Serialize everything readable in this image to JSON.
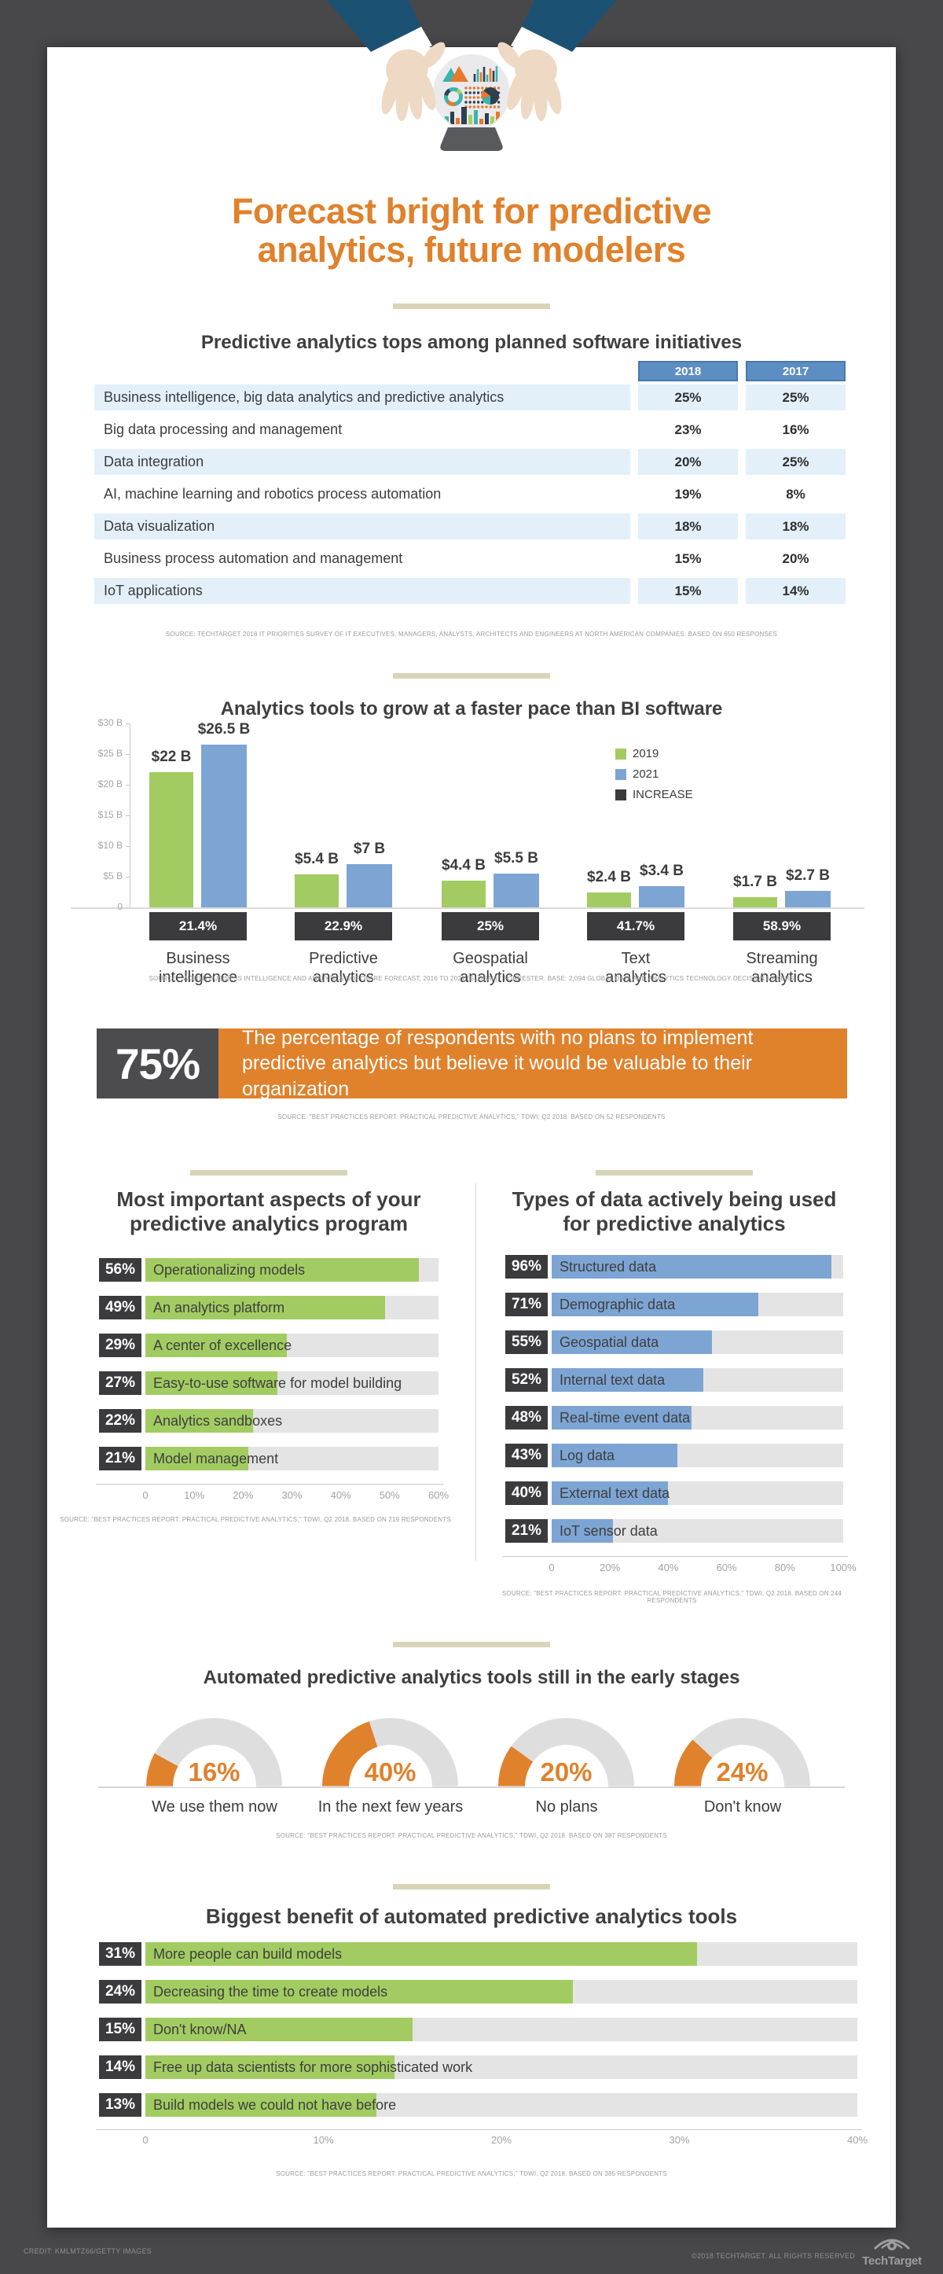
{
  "colors": {
    "orange": "#e0812c",
    "green": "#a2cc61",
    "blue": "#7da5d4",
    "header_blue": "#5d8ec3",
    "chip_dark": "#3b3b3d",
    "row_blue": "#e3f0fa",
    "divider_tan": "#d9d4b8",
    "navy_sleeve": "#1b5173",
    "skin": "#eed9c4",
    "bg_dark": "#48484a"
  },
  "header": {
    "title": "Forecast bright for predictive\nanalytics, future modelers"
  },
  "table_section": {
    "heading": "Predictive analytics tops among planned software initiatives",
    "col_2018": "2018",
    "col_2017": "2017",
    "rows": [
      {
        "label": "Business intelligence, big data analytics and predictive analytics",
        "y2018": "25%",
        "y2017": "25%"
      },
      {
        "label": "Big data processing and management",
        "y2018": "23%",
        "y2017": "16%"
      },
      {
        "label": "Data integration",
        "y2018": "20%",
        "y2017": "25%"
      },
      {
        "label": "AI, machine learning and robotics process automation",
        "y2018": "19%",
        "y2017": "8%"
      },
      {
        "label": "Data visualization",
        "y2018": "18%",
        "y2017": "18%"
      },
      {
        "label": "Business process automation and management",
        "y2018": "15%",
        "y2017": "20%"
      },
      {
        "label": "IoT applications",
        "y2018": "15%",
        "y2017": "14%"
      }
    ],
    "source": "SOURCE: TECHTARGET 2018 IT PRIORITIES SURVEY OF IT EXECUTIVES, MANAGERS, ANALYSTS, ARCHITECTS AND ENGINEERS AT NORTH AMERICAN COMPANIES. BASED ON 650 RESPONSES"
  },
  "growth_chart": {
    "heading": "Analytics tools to grow at a faster pace than BI software",
    "y_ticks": [
      "$30 B",
      "$25 B",
      "$20 B",
      "$15 B",
      "$10 B",
      "$5 B",
      "0"
    ],
    "legend": [
      {
        "label": "2019"
      },
      {
        "label": "2021"
      },
      {
        "label": "INCREASE"
      }
    ],
    "groups": [
      {
        "category": "Business\nintelligence",
        "v2019": 22,
        "v2019_label": "$22 B",
        "v2021": 26.5,
        "v2021_label": "$26.5 B",
        "increase": "21.4%"
      },
      {
        "category": "Predictive\nanalytics",
        "v2019": 5.4,
        "v2019_label": "$5.4 B",
        "v2021": 7,
        "v2021_label": "$7 B",
        "increase": "22.9%"
      },
      {
        "category": "Geospatial\nanalytics",
        "v2019": 4.4,
        "v2019_label": "$4.4 B",
        "v2021": 5.5,
        "v2021_label": "$5.5 B",
        "increase": "25%"
      },
      {
        "category": "Text\nanalytics",
        "v2019": 2.4,
        "v2019_label": "$2.4 B",
        "v2021": 3.4,
        "v2021_label": "$3.4 B",
        "increase": "41.7%"
      },
      {
        "category": "Streaming\nanalytics",
        "v2019": 1.7,
        "v2019_label": "$1.7 B",
        "v2021": 2.7,
        "v2021_label": "$2.7 B",
        "increase": "58.9%"
      }
    ],
    "source": "SOURCE: \"WORLD BUSINESS INTELLIGENCE AND ANALYTICS SOFTWARE FORECAST, 2016 TO 2021 (GLOBAL),\" FORRESTER. BASE: 2,094 GLOBAL DATA AND ANALYTICS TECHNOLOGY DECISION MAKERS"
  },
  "callout": {
    "stat": "75%",
    "text": "The percentage of respondents with no plans to implement predictive analytics but believe it would be valuable to their organization",
    "source": "SOURCE: \"BEST PRACTICES REPORT: PRACTICAL PREDICTIVE ANALYTICS,\" TDWI, Q2 2018. BASED ON 52 RESPONDENTS"
  },
  "aspects_chart": {
    "heading": "Most important aspects of your\npredictive analytics program",
    "rows": [
      {
        "pct": "56%",
        "value": 56,
        "label": "Operationalizing models"
      },
      {
        "pct": "49%",
        "value": 49,
        "label": "An analytics platform"
      },
      {
        "pct": "29%",
        "value": 29,
        "label": "A center of excellence"
      },
      {
        "pct": "27%",
        "value": 27,
        "label": "Easy-to-use software for model building"
      },
      {
        "pct": "22%",
        "value": 22,
        "label": "Analytics sandboxes"
      },
      {
        "pct": "21%",
        "value": 21,
        "label": "Model management"
      }
    ],
    "axis": [
      "0",
      "10%",
      "20%",
      "30%",
      "40%",
      "50%",
      "60%"
    ],
    "source": "SOURCE: \"BEST PRACTICES REPORT: PRACTICAL PREDICTIVE ANALYTICS,\" TDWI, Q2 2018. BASED ON 219 RESPONDENTS"
  },
  "data_types_chart": {
    "heading": "Types of data actively being used\nfor predictive analytics",
    "rows": [
      {
        "pct": "96%",
        "value": 96,
        "label": "Structured data"
      },
      {
        "pct": "71%",
        "value": 71,
        "label": "Demographic data"
      },
      {
        "pct": "55%",
        "value": 55,
        "label": "Geospatial data"
      },
      {
        "pct": "52%",
        "value": 52,
        "label": "Internal text data"
      },
      {
        "pct": "48%",
        "value": 48,
        "label": "Real-time event data"
      },
      {
        "pct": "43%",
        "value": 43,
        "label": "Log data"
      },
      {
        "pct": "40%",
        "value": 40,
        "label": "External text data"
      },
      {
        "pct": "21%",
        "value": 21,
        "label": "IoT sensor data"
      }
    ],
    "axis": [
      "0",
      "20%",
      "40%",
      "60%",
      "80%",
      "100%"
    ],
    "source": "SOURCE: \"BEST PRACTICES REPORT: PRACTICAL PREDICTIVE ANALYTICS,\" TDWI, Q2 2018. BASED ON 244 RESPONDENTS"
  },
  "gauges": {
    "heading": "Automated predictive analytics tools still in the early stages",
    "items": [
      {
        "pct": "16%",
        "value": 16,
        "label": "We use them now"
      },
      {
        "pct": "40%",
        "value": 40,
        "label": "In the next few years"
      },
      {
        "pct": "20%",
        "value": 20,
        "label": "No plans"
      },
      {
        "pct": "24%",
        "value": 24,
        "label": "Don't know"
      }
    ],
    "source": "SOURCE: \"BEST PRACTICES REPORT: PRACTICAL PREDICTIVE ANALYTICS,\" TDWI, Q2 2018. BASED ON 387 RESPONDENTS"
  },
  "benefit_chart": {
    "heading": "Biggest benefit of automated predictive analytics tools",
    "rows": [
      {
        "pct": "31%",
        "value": 31,
        "label": "More people can build models"
      },
      {
        "pct": "24%",
        "value": 24,
        "label": "Decreasing the time to create models"
      },
      {
        "pct": "15%",
        "value": 15,
        "label": "Don't know/NA"
      },
      {
        "pct": "14%",
        "value": 14,
        "label": "Free up data scientists for more sophisticated work"
      },
      {
        "pct": "13%",
        "value": 13,
        "label": "Build models we could not have before"
      }
    ],
    "axis": [
      "0",
      "10%",
      "20%",
      "30%",
      "40%"
    ],
    "source": "SOURCE: \"BEST PRACTICES REPORT: PRACTICAL PREDICTIVE ANALYTICS,\" TDWI, Q2 2018. BASED ON 385 RESPONDENTS"
  },
  "footer": {
    "credit": "CREDIT: KMLMTZ66/GETTY IMAGES",
    "copyright": "©2018 TECHTARGET. ALL RIGHTS RESERVED",
    "brand": "TechTarget"
  },
  "chart_data": [
    {
      "type": "table",
      "title": "Predictive analytics tops among planned software initiatives",
      "columns": [
        "2018",
        "2017"
      ],
      "categories": [
        "Business intelligence, big data analytics and predictive analytics",
        "Big data processing and management",
        "Data integration",
        "AI, machine learning and robotics process automation",
        "Data visualization",
        "Business process automation and management",
        "IoT applications"
      ],
      "series": [
        {
          "name": "2018",
          "values": [
            25,
            23,
            20,
            19,
            18,
            15,
            15
          ]
        },
        {
          "name": "2017",
          "values": [
            25,
            16,
            25,
            8,
            18,
            20,
            14
          ]
        }
      ],
      "unit": "%"
    },
    {
      "type": "bar",
      "title": "Analytics tools to grow at a faster pace than BI software",
      "categories": [
        "Business intelligence",
        "Predictive analytics",
        "Geospatial analytics",
        "Text analytics",
        "Streaming analytics"
      ],
      "series": [
        {
          "name": "2019",
          "values": [
            22,
            5.4,
            4.4,
            2.4,
            1.7
          ]
        },
        {
          "name": "2021",
          "values": [
            26.5,
            7,
            5.5,
            3.4,
            2.7
          ]
        }
      ],
      "increase_labels": [
        "21.4%",
        "22.9%",
        "25%",
        "41.7%",
        "58.9%"
      ],
      "ylabel": "$ billions",
      "ylim": [
        0,
        30
      ],
      "legend_position": "right",
      "grid": false
    },
    {
      "type": "bar",
      "orientation": "horizontal",
      "title": "Most important aspects of your predictive analytics program",
      "categories": [
        "Operationalizing models",
        "An analytics platform",
        "A center of excellence",
        "Easy-to-use software for model building",
        "Analytics sandboxes",
        "Model management"
      ],
      "values": [
        56,
        49,
        29,
        27,
        22,
        21
      ],
      "xlim": [
        0,
        60
      ],
      "unit": "%"
    },
    {
      "type": "bar",
      "orientation": "horizontal",
      "title": "Types of data actively being used for predictive analytics",
      "categories": [
        "Structured data",
        "Demographic data",
        "Geospatial data",
        "Internal text data",
        "Real-time event data",
        "Log data",
        "External text data",
        "IoT sensor data"
      ],
      "values": [
        96,
        71,
        55,
        52,
        48,
        43,
        40,
        21
      ],
      "xlim": [
        0,
        100
      ],
      "unit": "%"
    },
    {
      "type": "pie",
      "subtype": "semicircle-gauge",
      "title": "Automated predictive analytics tools still in the early stages",
      "categories": [
        "We use them now",
        "In the next few years",
        "No plans",
        "Don't know"
      ],
      "values": [
        16,
        40,
        20,
        24
      ],
      "unit": "%"
    },
    {
      "type": "bar",
      "orientation": "horizontal",
      "title": "Biggest benefit of automated predictive analytics tools",
      "categories": [
        "More people can build models",
        "Decreasing the time to create models",
        "Don't know/NA",
        "Free up data scientists for more sophisticated work",
        "Build models we could not have before"
      ],
      "values": [
        31,
        24,
        15,
        14,
        13
      ],
      "xlim": [
        0,
        40
      ],
      "unit": "%"
    },
    {
      "type": "stat",
      "value": "75%",
      "text": "The percentage of respondents with no plans to implement predictive analytics but believe it would be valuable to their organization"
    }
  ]
}
